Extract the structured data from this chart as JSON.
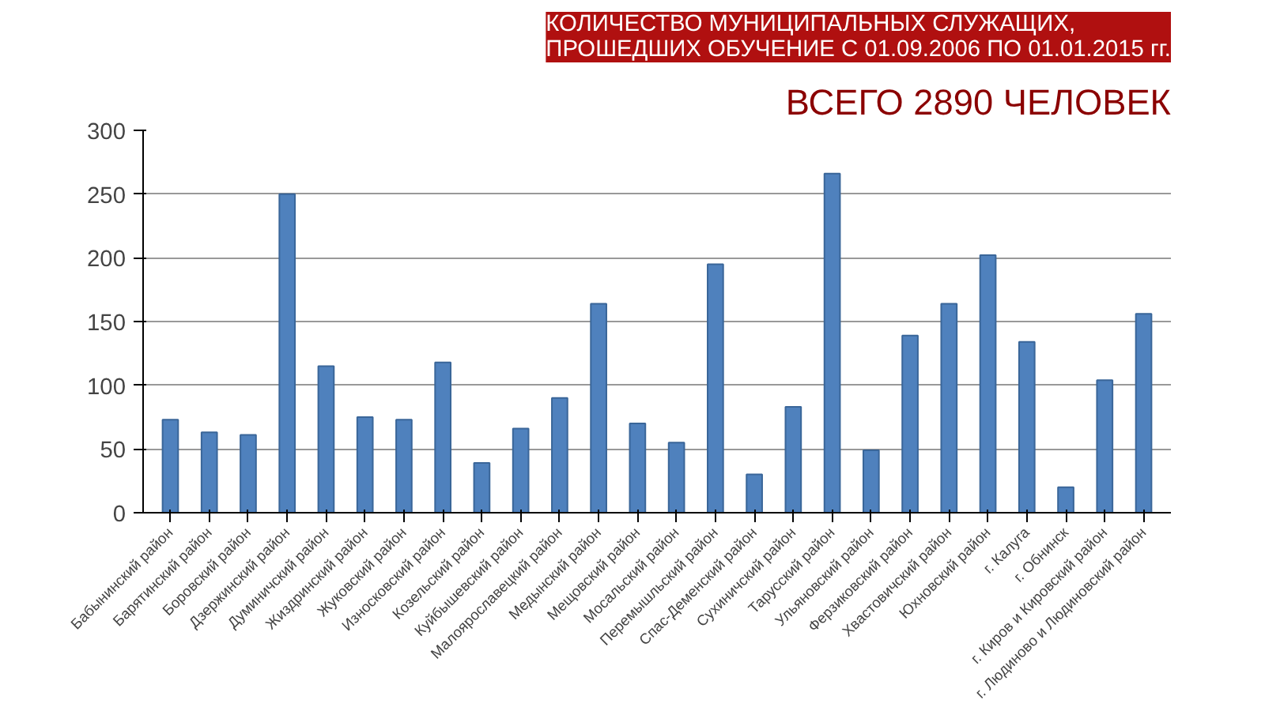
{
  "chart_data": {
    "type": "bar",
    "title": "КОЛИЧЕСТВО МУНИЦИПАЛЬНЫХ СЛУЖАЩИХ,\nПРОШЕДШИХ ОБУЧЕНИЕ С 01.09.2006 ПО 01.01.2015 гг.",
    "subtitle": "ВСЕГО 2890 ЧЕЛОВЕК",
    "categories": [
      "Бабынинский район",
      "Барятинский район",
      "Боровский район",
      "Дзержинский район",
      "Думиничский район",
      "Жиздринский район",
      "Жуковский район",
      "Износковский район",
      "Козельский район",
      "Куйбышевский район",
      "Малоярославецкий район",
      "Медынский район",
      "Мещовский район",
      "Мосальский район",
      "Перемышльский район",
      "Спас-Деменский район",
      "Сухиничский район",
      "Тарусский район",
      "Ульяновский район",
      "Ферзиковский район",
      "Хвастовичский район",
      "Юхновский район",
      "г. Калуга",
      "г. Обнинск",
      "г. Киров и Кировский район",
      "г. Людиново и Людиновский район"
    ],
    "values": [
      73,
      63,
      61,
      250,
      115,
      75,
      73,
      118,
      39,
      66,
      90,
      164,
      70,
      55,
      195,
      30,
      83,
      266,
      49,
      139,
      164,
      202,
      134,
      20,
      104,
      156
    ],
    "color": "#4f81bd",
    "ylim": [
      0,
      300
    ],
    "yticks": [
      0,
      50,
      100,
      150,
      200,
      250,
      300
    ],
    "grid": "y"
  }
}
